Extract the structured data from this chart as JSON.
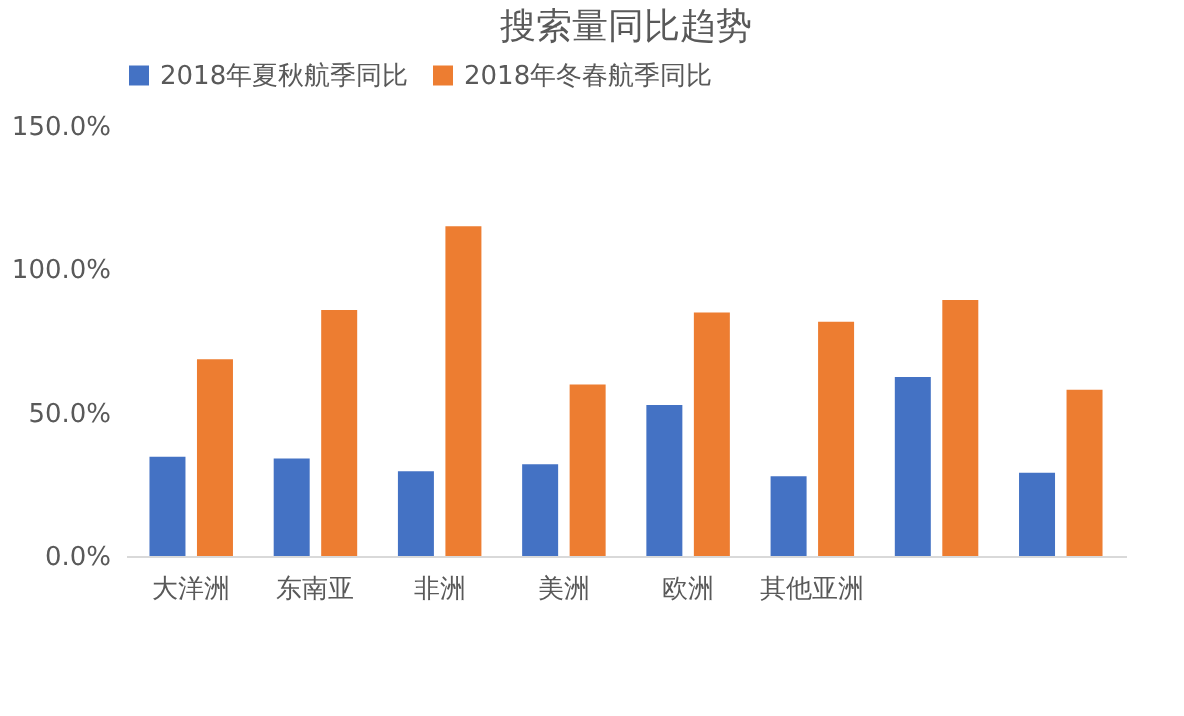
{
  "chart_data": {
    "type": "bar",
    "title": "搜索量同比趋势",
    "categories": [
      "大洋洲",
      "东南亚",
      "非洲",
      "美洲",
      "欧洲",
      "其他亚洲",
      null,
      null
    ],
    "series": [
      {
        "name": "2018年夏秋航季同比",
        "color": "#4472c4",
        "values": [
          34.6,
          34.0,
          29.6,
          32.0,
          52.7,
          27.8,
          62.4,
          29.0
        ]
      },
      {
        "name": "2018年冬春航季同比",
        "color": "#ed7d31",
        "values": [
          68.6,
          85.8,
          115,
          59.8,
          84.9,
          81.7,
          89.3,
          58.0
        ]
      }
    ],
    "ylim": [
      0,
      150
    ],
    "yticks": [
      {
        "value": 0,
        "label": "0.0%"
      },
      {
        "value": 50,
        "label": "50.0%"
      },
      {
        "value": 100,
        "label": "100.0%"
      },
      {
        "value": 150,
        "label": "150.0%"
      }
    ],
    "grid": false,
    "legend": "top"
  }
}
